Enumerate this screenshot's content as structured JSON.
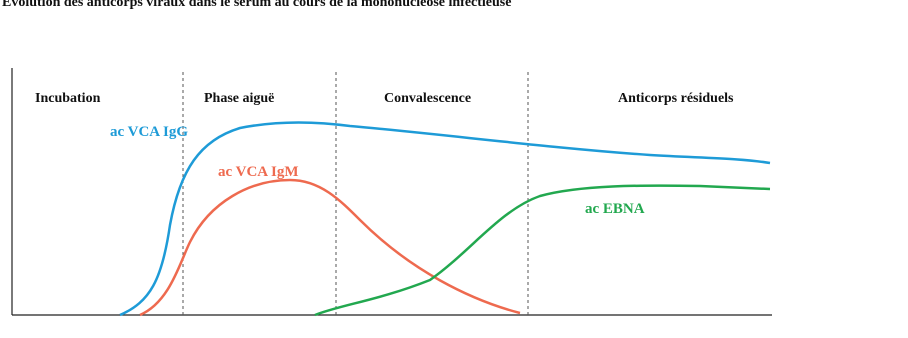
{
  "title": "Évolution des anticorps viraux dans le sérum au cours de la mononucléose infectieuse",
  "phases": [
    "Incubation",
    "Phase aiguë",
    "Convalescence",
    "Anticorps résiduels"
  ],
  "curves": [
    "ac VCA IgG",
    "ac VCA IgM",
    "ac EBNA"
  ]
}
